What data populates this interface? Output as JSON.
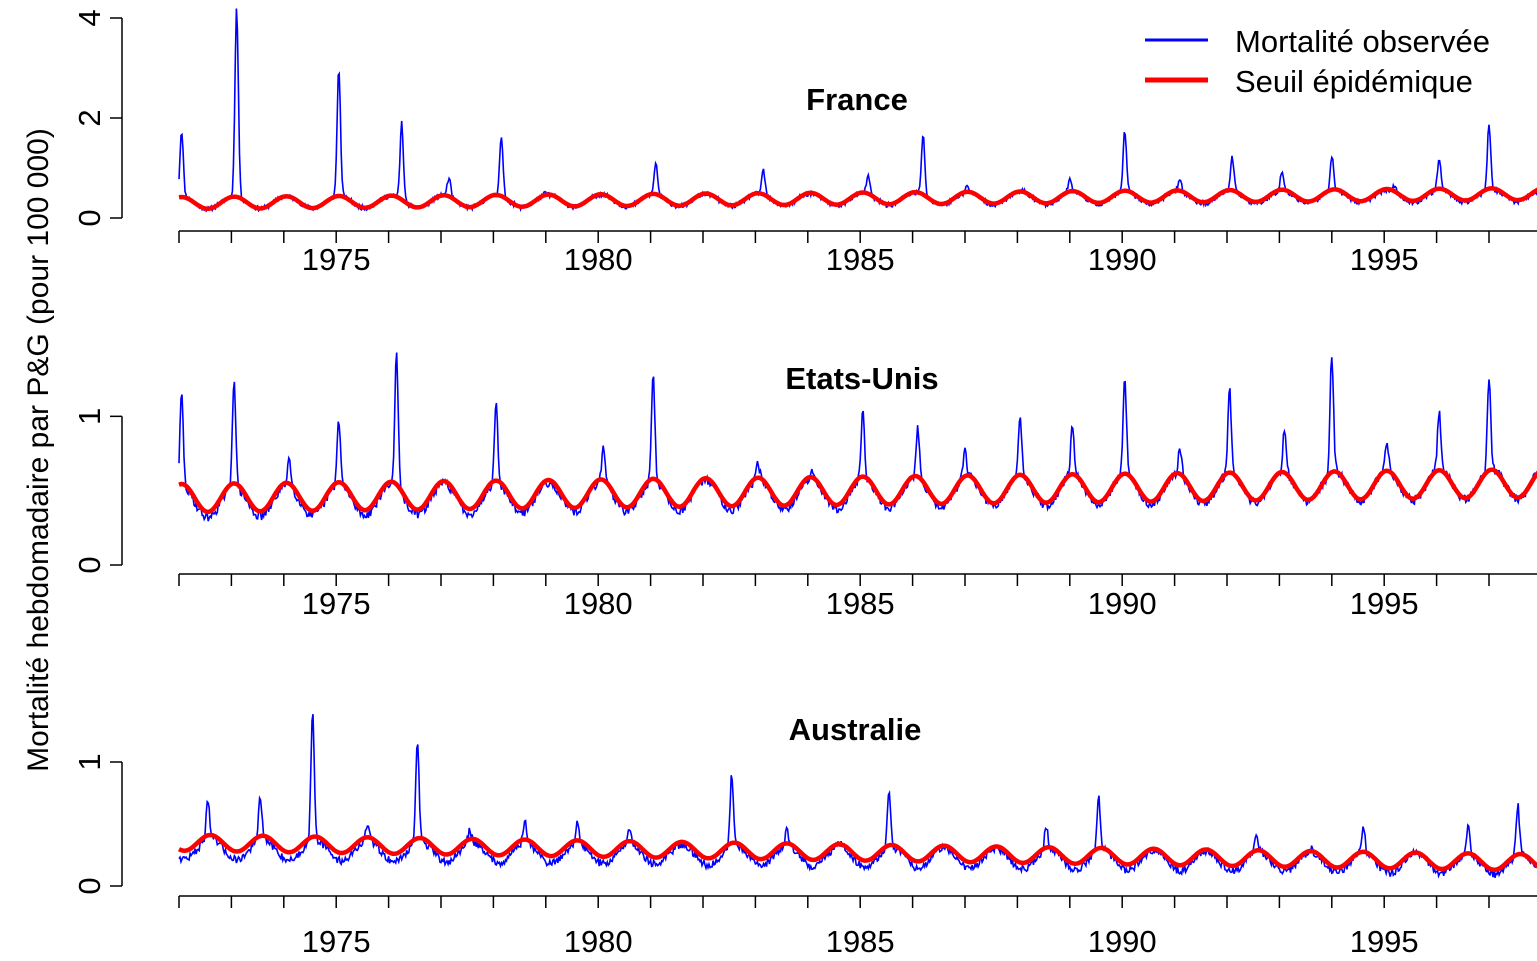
{
  "ylabel": "Mortalité hebdomadaire par P&G (pour 100 000)",
  "legend": {
    "position": "top-right",
    "items": [
      {
        "label": "Mortalité observée",
        "color": "#0000ff"
      },
      {
        "label": "Seuil épidémique",
        "color": "#ff0000"
      }
    ]
  },
  "chart_data": [
    {
      "type": "line",
      "title": "France",
      "xlabel": "",
      "xlim": [
        1972,
        1998
      ],
      "ylim": [
        0,
        4
      ],
      "x_ticks": [
        1972,
        1973,
        1974,
        1975,
        1976,
        1977,
        1978,
        1979,
        1980,
        1981,
        1982,
        1983,
        1984,
        1985,
        1986,
        1987,
        1988,
        1989,
        1990,
        1991,
        1992,
        1993,
        1994,
        1995,
        1996,
        1997,
        1998
      ],
      "x_tick_labels": [
        "1975",
        "1980",
        "1985",
        "1990",
        "1995"
      ],
      "y_ticks": [
        0,
        2,
        4
      ],
      "y_tick_labels": [
        "0",
        "2",
        "4"
      ],
      "grid": false,
      "series": [
        {
          "name": "Mortalité observée",
          "color": "#0000ff",
          "peak_year": [
            1972.05,
            1973.1,
            1975.05,
            1976.25,
            1977.15,
            1978.15,
            1979.0,
            1980.1,
            1981.1,
            1982.1,
            1983.15,
            1984.1,
            1985.15,
            1986.2,
            1987.05,
            1988.1,
            1989.0,
            1990.05,
            1991.1,
            1992.1,
            1993.05,
            1994.0,
            1995.2,
            1996.05,
            1997.0
          ],
          "peak_value": [
            1.75,
            4.2,
            3.0,
            1.9,
            0.8,
            1.6,
            0.5,
            0.3,
            1.1,
            0.35,
            0.95,
            0.4,
            0.85,
            1.65,
            0.65,
            0.55,
            0.8,
            1.75,
            0.8,
            1.2,
            0.95,
            1.25,
            0.65,
            1.2,
            1.85
          ],
          "baseline": {
            "center": [
              0.3,
              0.45
            ],
            "amplitude": 0.12
          }
        },
        {
          "name": "Seuil épidémique",
          "color": "#ff0000",
          "center": [
            0.3,
            0.48
          ],
          "amplitude": 0.12,
          "peak_phase": 0.05
        }
      ]
    },
    {
      "type": "line",
      "title": "Etats-Unis",
      "xlabel": "",
      "xlim": [
        1972,
        1998
      ],
      "ylim": [
        0,
        1.5
      ],
      "x_ticks": [
        1972,
        1973,
        1974,
        1975,
        1976,
        1977,
        1978,
        1979,
        1980,
        1981,
        1982,
        1983,
        1984,
        1985,
        1986,
        1987,
        1988,
        1989,
        1990,
        1991,
        1992,
        1993,
        1994,
        1995,
        1996,
        1997,
        1998
      ],
      "x_tick_labels": [
        "1975",
        "1980",
        "1985",
        "1990",
        "1995"
      ],
      "y_ticks": [
        0,
        1
      ],
      "y_tick_labels": [
        "0",
        "1"
      ],
      "grid": false,
      "series": [
        {
          "name": "Mortalité observée",
          "color": "#0000ff",
          "peak_year": [
            1972.05,
            1973.05,
            1974.1,
            1975.05,
            1976.15,
            1977.1,
            1978.05,
            1979.0,
            1980.1,
            1981.05,
            1982.0,
            1983.05,
            1984.1,
            1985.05,
            1986.1,
            1987.0,
            1988.05,
            1989.05,
            1990.05,
            1991.1,
            1992.05,
            1993.1,
            1994.0,
            1995.05,
            1996.05,
            1997.0
          ],
          "peak_value": [
            1.15,
            1.25,
            0.72,
            0.98,
            1.42,
            0.55,
            1.1,
            0.52,
            0.8,
            1.27,
            0.5,
            0.68,
            0.63,
            1.02,
            0.92,
            0.77,
            1.0,
            0.95,
            1.25,
            0.78,
            1.18,
            0.92,
            1.42,
            0.83,
            1.03,
            1.25
          ],
          "baseline": {
            "center": [
              0.42,
              0.55
            ],
            "amplitude": 0.1
          }
        },
        {
          "name": "Seuil épidémique",
          "color": "#ff0000",
          "center": [
            0.45,
            0.55
          ],
          "amplitude": 0.095,
          "peak_phase": 0.05
        }
      ]
    },
    {
      "type": "line",
      "title": "Australie",
      "xlabel": "",
      "xlim": [
        1972,
        1998
      ],
      "ylim": [
        0,
        1.5
      ],
      "x_ticks": [
        1972,
        1973,
        1974,
        1975,
        1976,
        1977,
        1978,
        1979,
        1980,
        1981,
        1982,
        1983,
        1984,
        1985,
        1986,
        1987,
        1988,
        1989,
        1990,
        1991,
        1992,
        1993,
        1994,
        1995,
        1996,
        1997,
        1998
      ],
      "x_tick_labels": [
        "1975",
        "1980",
        "1985",
        "1990",
        "1995"
      ],
      "y_ticks": [
        0,
        1
      ],
      "y_tick_labels": [
        "0",
        "1"
      ],
      "grid": false,
      "series": [
        {
          "name": "Mortalité observée",
          "color": "#0000ff",
          "peak_year": [
            1972.55,
            1973.55,
            1974.55,
            1975.6,
            1976.55,
            1977.55,
            1978.6,
            1979.6,
            1980.6,
            1981.6,
            1982.55,
            1983.6,
            1984.6,
            1985.55,
            1986.6,
            1987.6,
            1988.55,
            1989.55,
            1990.6,
            1991.6,
            1992.55,
            1993.6,
            1994.6,
            1995.6,
            1996.6,
            1997.55
          ],
          "peak_value": [
            0.7,
            0.72,
            1.42,
            0.5,
            1.17,
            0.45,
            0.52,
            0.5,
            0.47,
            0.32,
            0.9,
            0.45,
            0.35,
            0.75,
            0.3,
            0.3,
            0.48,
            0.72,
            0.25,
            0.25,
            0.42,
            0.3,
            0.48,
            0.28,
            0.48,
            0.65
          ],
          "baseline": {
            "center": [
              0.3,
              0.17
            ],
            "amplitude": 0.08
          }
        },
        {
          "name": "Seuil épidémique",
          "color": "#ff0000",
          "center": [
            0.35,
            0.19
          ],
          "amplitude": 0.065,
          "peak_phase": 0.6
        }
      ]
    }
  ]
}
